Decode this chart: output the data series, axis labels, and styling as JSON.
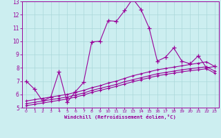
{
  "xlabel": "Windchill (Refroidissement éolien,°C)",
  "bg_color": "#cceef0",
  "line_color": "#990099",
  "xlim": [
    -0.5,
    23.5
  ],
  "ylim": [
    5,
    13
  ],
  "yticks": [
    5,
    6,
    7,
    8,
    9,
    10,
    11,
    12,
    13
  ],
  "xticks": [
    0,
    1,
    2,
    3,
    4,
    5,
    6,
    7,
    8,
    9,
    10,
    11,
    12,
    13,
    14,
    15,
    16,
    17,
    18,
    19,
    20,
    21,
    22,
    23
  ],
  "series1_x": [
    0,
    1,
    2,
    3,
    4,
    5,
    6,
    7,
    8,
    9,
    10,
    11,
    12,
    13,
    14,
    15,
    16,
    17,
    18,
    19,
    20,
    21,
    22,
    23
  ],
  "series1_y": [
    7.0,
    6.4,
    5.5,
    5.8,
    7.7,
    5.4,
    6.2,
    6.9,
    9.95,
    10.0,
    11.55,
    11.5,
    12.3,
    13.2,
    12.4,
    11.0,
    8.5,
    8.8,
    9.5,
    8.5,
    8.3,
    8.9,
    8.0,
    8.1
  ],
  "series2_x": [
    0,
    1,
    2,
    3,
    4,
    5,
    6,
    7,
    8,
    9,
    10,
    11,
    12,
    13,
    14,
    15,
    16,
    17,
    18,
    19,
    20,
    21,
    22,
    23
  ],
  "series2_y": [
    5.5,
    5.6,
    5.7,
    5.8,
    5.9,
    6.0,
    6.15,
    6.3,
    6.5,
    6.65,
    6.85,
    7.0,
    7.2,
    7.4,
    7.55,
    7.7,
    7.85,
    7.95,
    8.05,
    8.15,
    8.25,
    8.35,
    8.45,
    8.1
  ],
  "series3_x": [
    0,
    1,
    2,
    3,
    4,
    5,
    6,
    7,
    8,
    9,
    10,
    11,
    12,
    13,
    14,
    15,
    16,
    17,
    18,
    19,
    20,
    21,
    22,
    23
  ],
  "series3_y": [
    5.3,
    5.4,
    5.5,
    5.6,
    5.7,
    5.8,
    5.95,
    6.1,
    6.3,
    6.45,
    6.6,
    6.75,
    6.95,
    7.1,
    7.25,
    7.4,
    7.55,
    7.65,
    7.75,
    7.85,
    7.93,
    8.0,
    8.08,
    7.75
  ],
  "series4_x": [
    0,
    1,
    2,
    3,
    4,
    5,
    6,
    7,
    8,
    9,
    10,
    11,
    12,
    13,
    14,
    15,
    16,
    17,
    18,
    19,
    20,
    21,
    22,
    23
  ],
  "series4_y": [
    5.15,
    5.25,
    5.35,
    5.45,
    5.55,
    5.65,
    5.8,
    5.95,
    6.15,
    6.3,
    6.45,
    6.6,
    6.78,
    6.95,
    7.1,
    7.25,
    7.4,
    7.5,
    7.6,
    7.7,
    7.78,
    7.85,
    7.93,
    7.6
  ]
}
